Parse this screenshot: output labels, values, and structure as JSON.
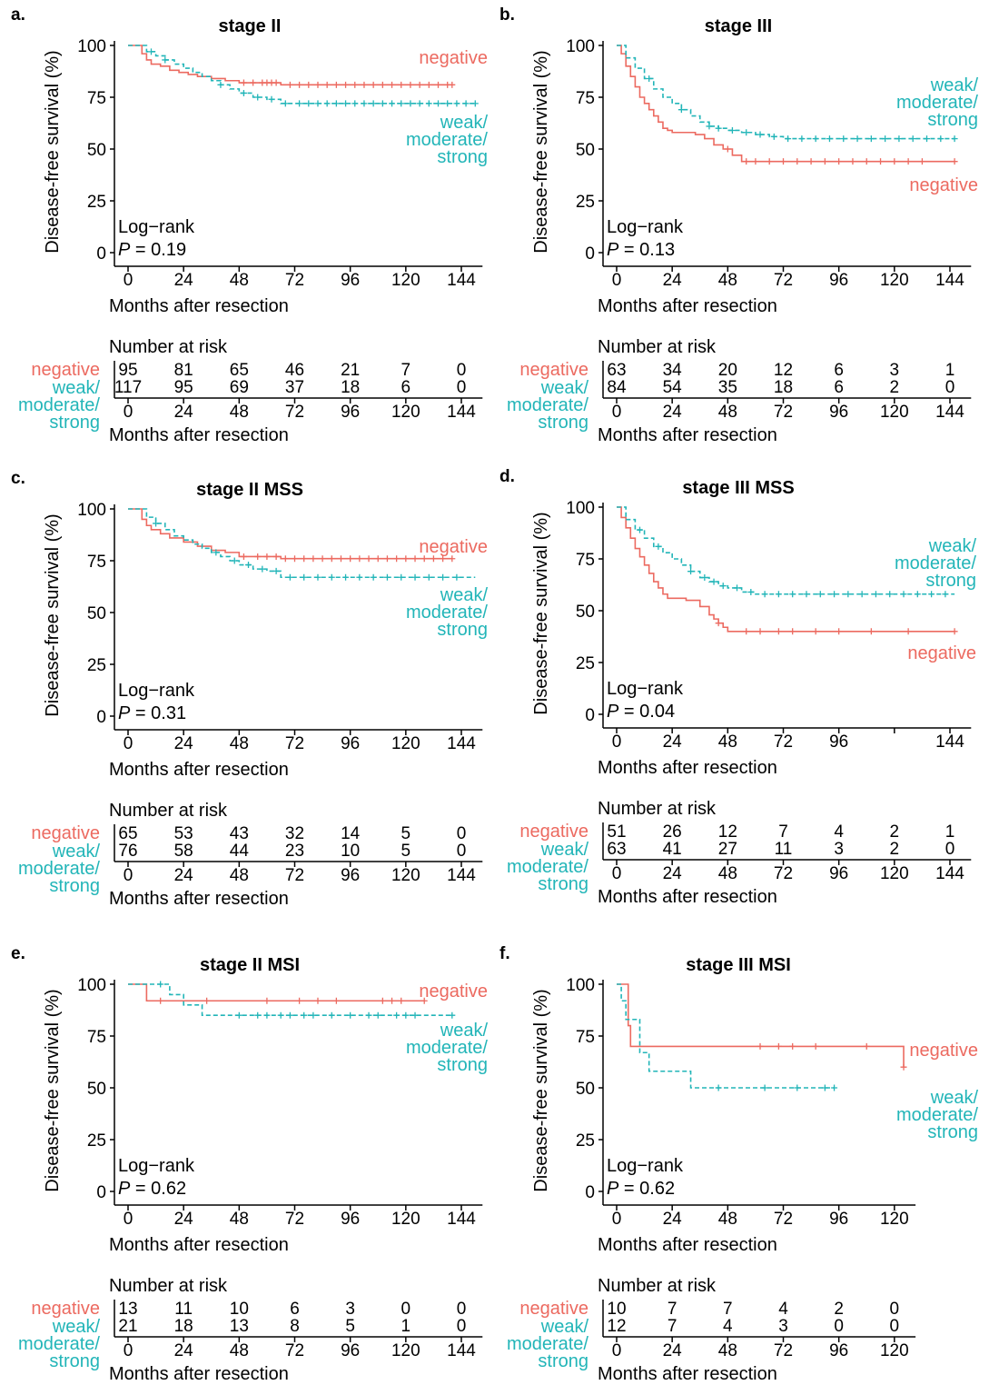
{
  "colors": {
    "negative": "#ec6a60",
    "weak": "#22b5b8"
  },
  "y_axis_title": "Disease-free survival (%)",
  "x_axis_title": "Months after resection",
  "risk_title": "Number at risk",
  "legend_labels": {
    "negative": "negative",
    "weak_lines": [
      "weak/",
      "moderate/",
      "strong"
    ]
  },
  "chart_data": [
    {
      "letter": "a.",
      "title": "stage II",
      "type": "line",
      "xlabel": "Months after resection",
      "ylabel": "Disease-free survival (%)",
      "x_ticks": [
        "0",
        "24",
        "48",
        "72",
        "96",
        "120",
        "144"
      ],
      "x_tick_values": [
        0,
        24,
        48,
        72,
        96,
        120,
        144
      ],
      "xlim": [
        0,
        150
      ],
      "y_ticks": [
        "0",
        "25",
        "50",
        "75",
        "100"
      ],
      "ylim": [
        0,
        100
      ],
      "stat_line1": "Log−rank",
      "stat_p_label": "P",
      "stat_p_value": "= 0.19",
      "series": [
        {
          "name": "negative",
          "line": "solid",
          "x": [
            0,
            6,
            8,
            10,
            14,
            18,
            22,
            26,
            30,
            36,
            42,
            48,
            54,
            60,
            66,
            140
          ],
          "y": [
            100,
            96,
            93,
            91,
            90,
            88,
            87,
            86,
            85,
            84,
            83,
            82,
            82,
            82,
            81,
            81
          ],
          "censor_x": [
            50,
            54,
            58,
            60,
            62,
            64,
            70,
            74,
            78,
            82,
            86,
            90,
            94,
            98,
            102,
            106,
            110,
            114,
            118,
            122,
            126,
            130,
            134,
            138,
            140
          ]
        },
        {
          "name": "weak/moderate/strong",
          "line": "dashed",
          "x": [
            0,
            8,
            12,
            16,
            20,
            24,
            28,
            32,
            36,
            40,
            44,
            48,
            54,
            60,
            66,
            150
          ],
          "y": [
            100,
            97,
            95,
            93,
            91,
            89,
            87,
            85,
            83,
            81,
            79,
            77,
            75,
            74,
            72,
            72
          ],
          "censor_x": [
            10,
            16,
            40,
            50,
            56,
            62,
            68,
            74,
            78,
            82,
            86,
            90,
            94,
            98,
            102,
            106,
            110,
            114,
            118,
            122,
            126,
            130,
            134,
            138,
            142,
            146,
            150
          ]
        }
      ],
      "legend_positions": {
        "negative": "top-right",
        "weak": "right"
      },
      "risk_table": {
        "negative": [
          "95",
          "81",
          "65",
          "46",
          "21",
          "7",
          "0"
        ],
        "weak": [
          "117",
          "95",
          "69",
          "37",
          "18",
          "6",
          "0"
        ]
      }
    },
    {
      "letter": "b.",
      "title": "stage III",
      "type": "line",
      "xlabel": "Months after resection",
      "ylabel": "Disease-free survival (%)",
      "x_ticks": [
        "0",
        "24",
        "48",
        "72",
        "96",
        "120",
        "144"
      ],
      "x_tick_values": [
        0,
        24,
        48,
        72,
        96,
        120,
        144
      ],
      "xlim": [
        0,
        150
      ],
      "y_ticks": [
        "0",
        "25",
        "50",
        "75",
        "100"
      ],
      "ylim": [
        0,
        100
      ],
      "stat_line1": "Log−rank",
      "stat_p_label": "P",
      "stat_p_value": "= 0.13",
      "series": [
        {
          "name": "negative",
          "line": "solid",
          "x": [
            0,
            2,
            4,
            6,
            8,
            10,
            12,
            14,
            16,
            18,
            20,
            22,
            24,
            30,
            34,
            38,
            42,
            46,
            50,
            54,
            146
          ],
          "y": [
            100,
            96,
            90,
            85,
            80,
            75,
            72,
            69,
            66,
            63,
            60,
            59,
            58,
            58,
            57,
            55,
            52,
            50,
            47,
            44,
            44
          ],
          "censor_x": [
            48,
            56,
            60,
            66,
            72,
            78,
            84,
            90,
            96,
            102,
            108,
            114,
            120,
            126,
            132,
            146
          ]
        },
        {
          "name": "weak/moderate/strong",
          "line": "dashed",
          "x": [
            0,
            4,
            8,
            12,
            16,
            20,
            24,
            28,
            32,
            36,
            40,
            44,
            48,
            54,
            60,
            66,
            72,
            146
          ],
          "y": [
            100,
            94,
            89,
            84,
            79,
            75,
            72,
            69,
            66,
            63,
            61,
            60,
            59,
            58,
            57,
            56,
            55,
            55
          ],
          "censor_x": [
            14,
            28,
            40,
            44,
            50,
            56,
            62,
            68,
            74,
            80,
            86,
            92,
            98,
            104,
            110,
            116,
            122,
            128,
            134,
            140,
            146
          ]
        }
      ],
      "legend_positions": {
        "negative": "right",
        "weak": "top-right"
      },
      "risk_table": {
        "negative": [
          "63",
          "34",
          "20",
          "12",
          "6",
          "3",
          "1"
        ],
        "weak": [
          "84",
          "54",
          "35",
          "18",
          "6",
          "2",
          "0"
        ]
      }
    },
    {
      "letter": "c.",
      "title": "stage II MSS",
      "type": "line",
      "xlabel": "Months after resection",
      "ylabel": "Disease-free survival (%)",
      "x_ticks": [
        "0",
        "24",
        "48",
        "72",
        "96",
        "120",
        "144"
      ],
      "x_tick_values": [
        0,
        24,
        48,
        72,
        96,
        120,
        144
      ],
      "xlim": [
        0,
        150
      ],
      "y_ticks": [
        "0",
        "25",
        "50",
        "75",
        "100"
      ],
      "ylim": [
        0,
        100
      ],
      "stat_line1": "Log−rank",
      "stat_p_label": "P",
      "stat_p_value": "= 0.31",
      "series": [
        {
          "name": "negative",
          "line": "solid",
          "x": [
            0,
            6,
            8,
            10,
            14,
            18,
            24,
            30,
            36,
            42,
            48,
            54,
            60,
            66,
            140
          ],
          "y": [
            100,
            95,
            92,
            90,
            88,
            86,
            84,
            82,
            80,
            79,
            77,
            77,
            77,
            76,
            76
          ],
          "censor_x": [
            50,
            56,
            60,
            64,
            68,
            72,
            76,
            80,
            84,
            88,
            92,
            96,
            100,
            104,
            108,
            112,
            116,
            120,
            124,
            128,
            132,
            136,
            140
          ]
        },
        {
          "name": "weak/moderate/strong",
          "line": "dashed",
          "x": [
            0,
            8,
            12,
            16,
            20,
            24,
            28,
            32,
            36,
            40,
            44,
            48,
            54,
            60,
            66,
            150
          ],
          "y": [
            100,
            96,
            93,
            90,
            87,
            85,
            83,
            81,
            79,
            77,
            75,
            73,
            71,
            70,
            67,
            67
          ],
          "censor_x": [
            12,
            38,
            46,
            52,
            58,
            64,
            70,
            76,
            82,
            88,
            94,
            100,
            106,
            112,
            118,
            124,
            130,
            136,
            142
          ]
        }
      ],
      "legend_positions": {
        "negative": "top-right",
        "weak": "right"
      },
      "risk_table": {
        "negative": [
          "65",
          "53",
          "43",
          "32",
          "14",
          "5",
          "0"
        ],
        "weak": [
          "76",
          "58",
          "44",
          "23",
          "10",
          "5",
          "0"
        ]
      }
    },
    {
      "letter": "d.",
      "title": "stage III MSS",
      "type": "line",
      "xlabel": "Months after resection",
      "ylabel": "Disease-free survival (%)",
      "x_ticks": [
        "0",
        "24",
        "48",
        "72",
        "96",
        "",
        "144"
      ],
      "x_tick_values": [
        0,
        24,
        48,
        72,
        96,
        120,
        144
      ],
      "xlim": [
        0,
        150
      ],
      "y_ticks": [
        "0",
        "25",
        "50",
        "75",
        "100"
      ],
      "ylim": [
        0,
        100
      ],
      "stat_line1": "Log−rank",
      "stat_p_label": "P",
      "stat_p_value": "= 0.04",
      "series": [
        {
          "name": "negative",
          "line": "solid",
          "x": [
            0,
            2,
            4,
            6,
            8,
            10,
            12,
            14,
            16,
            18,
            20,
            22,
            24,
            30,
            36,
            40,
            42,
            44,
            46,
            48,
            146
          ],
          "y": [
            100,
            95,
            90,
            85,
            80,
            76,
            72,
            68,
            64,
            61,
            58,
            56,
            56,
            55,
            52,
            48,
            46,
            44,
            42,
            40,
            40
          ],
          "censor_x": [
            44,
            56,
            62,
            70,
            76,
            86,
            96,
            110,
            126,
            146
          ]
        },
        {
          "name": "weak/moderate/strong",
          "line": "dashed",
          "x": [
            0,
            4,
            8,
            12,
            16,
            20,
            24,
            28,
            32,
            36,
            40,
            44,
            48,
            54,
            60,
            146
          ],
          "y": [
            100,
            94,
            89,
            85,
            81,
            78,
            75,
            72,
            69,
            66,
            64,
            62,
            61,
            59,
            58,
            58
          ],
          "censor_x": [
            10,
            18,
            32,
            38,
            42,
            46,
            52,
            58,
            64,
            70,
            76,
            82,
            88,
            94,
            100,
            106,
            112,
            118,
            124,
            130,
            136,
            142
          ]
        }
      ],
      "legend_positions": {
        "negative": "right",
        "weak": "top-right"
      },
      "risk_table": {
        "negative": [
          "51",
          "26",
          "12",
          "7",
          "4",
          "2",
          "1"
        ],
        "weak": [
          "63",
          "41",
          "27",
          "11",
          "3",
          "2",
          "0"
        ]
      }
    },
    {
      "letter": "e.",
      "title": "stage II MSI",
      "type": "line",
      "xlabel": "Months after resection",
      "ylabel": "Disease-free survival (%)",
      "x_ticks": [
        "0",
        "24",
        "48",
        "72",
        "96",
        "120",
        "144"
      ],
      "x_tick_values": [
        0,
        24,
        48,
        72,
        96,
        120,
        144
      ],
      "xlim": [
        0,
        150
      ],
      "y_ticks": [
        "0",
        "25",
        "50",
        "75",
        "100"
      ],
      "ylim": [
        0,
        100
      ],
      "stat_line1": "Log−rank",
      "stat_p_label": "P",
      "stat_p_value": "= 0.62",
      "series": [
        {
          "name": "negative",
          "line": "solid",
          "x": [
            0,
            8,
            128
          ],
          "y": [
            100,
            92,
            92
          ],
          "censor_x": [
            14,
            34,
            60,
            74,
            82,
            90,
            110,
            114,
            118,
            128
          ]
        },
        {
          "name": "weak/moderate/strong",
          "line": "dashed",
          "x": [
            0,
            12,
            18,
            24,
            32,
            140
          ],
          "y": [
            100,
            100,
            95,
            90,
            85,
            85
          ],
          "censor_x": [
            14,
            48,
            56,
            60,
            66,
            70,
            76,
            80,
            88,
            96,
            104,
            108,
            116,
            120,
            124,
            140
          ]
        }
      ],
      "legend_positions": {
        "negative": "top-right",
        "weak": "right"
      },
      "risk_table": {
        "negative": [
          "13",
          "11",
          "10",
          "6",
          "3",
          "0",
          "0"
        ],
        "weak": [
          "21",
          "18",
          "13",
          "8",
          "5",
          "1",
          "0"
        ]
      }
    },
    {
      "letter": "f.",
      "title": "stage III MSI",
      "type": "line",
      "xlabel": "Months after resection",
      "ylabel": "Disease-free survival (%)",
      "x_ticks": [
        "0",
        "24",
        "48",
        "72",
        "96",
        "120"
      ],
      "x_tick_values": [
        0,
        24,
        48,
        72,
        96,
        120
      ],
      "xlim": [
        0,
        126
      ],
      "y_ticks": [
        "0",
        "25",
        "50",
        "75",
        "100"
      ],
      "ylim": [
        0,
        100
      ],
      "stat_line1": "Log−rank",
      "stat_p_label": "P",
      "stat_p_value": "= 0.62",
      "series": [
        {
          "name": "negative",
          "line": "solid",
          "x": [
            0,
            3,
            5,
            6,
            54,
            124
          ],
          "y": [
            100,
            100,
            80,
            70,
            70,
            60
          ],
          "censor_x": [
            62,
            70,
            76,
            86,
            108,
            124
          ]
        },
        {
          "name": "weak/moderate/strong",
          "line": "dashed",
          "x": [
            0,
            2,
            4,
            6,
            10,
            14,
            32,
            94
          ],
          "y": [
            100,
            92,
            83,
            83,
            67,
            58,
            50,
            50
          ],
          "censor_x": [
            44,
            64,
            78,
            90,
            94
          ]
        }
      ],
      "legend_positions": {
        "negative": "right",
        "weak": "right"
      },
      "risk_table": {
        "negative": [
          "10",
          "7",
          "7",
          "4",
          "2",
          "0"
        ],
        "weak": [
          "12",
          "7",
          "4",
          "3",
          "0",
          "0"
        ]
      }
    }
  ]
}
